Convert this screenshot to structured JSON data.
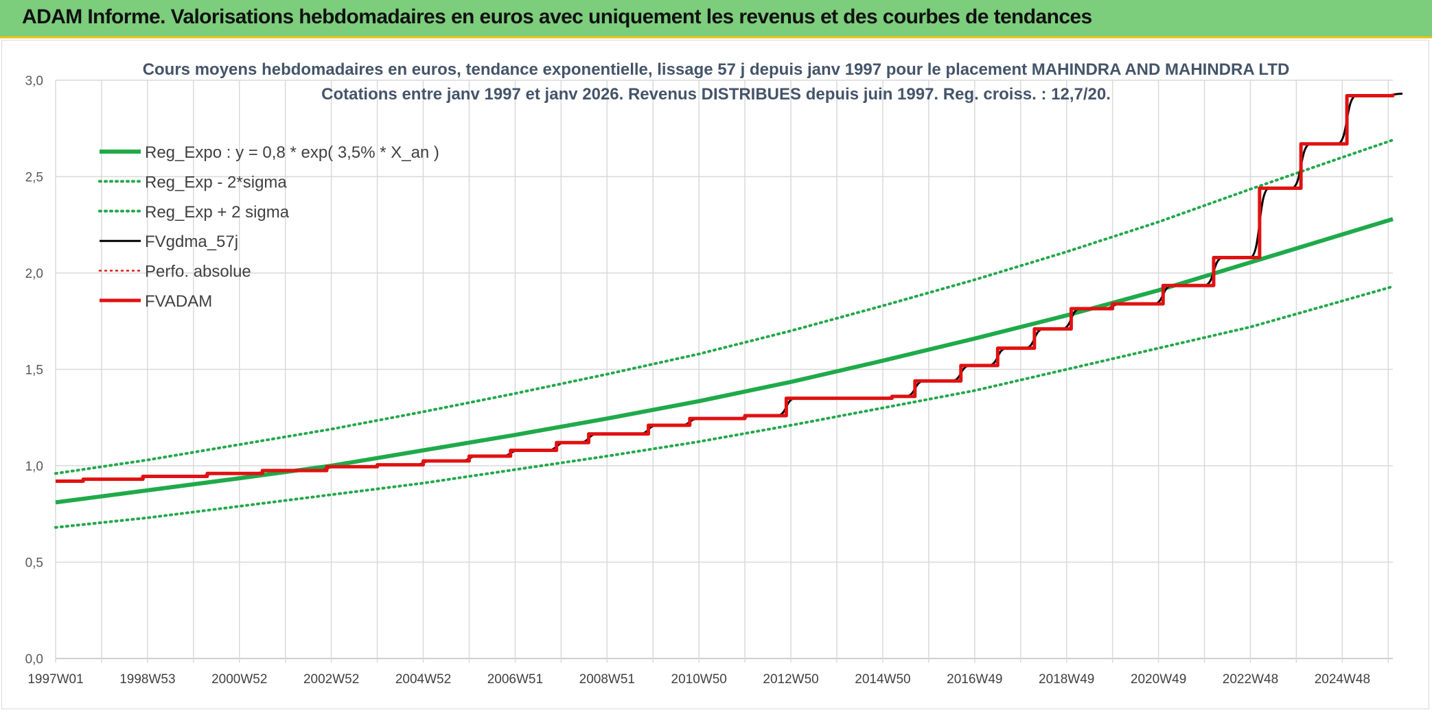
{
  "header": {
    "title": "ADAM Informe. Valorisations hebdomadaires en euros avec uniquement les revenus et des courbes de tendances"
  },
  "colors": {
    "reg_expo": "#1faa4a",
    "bands": "#22a84a",
    "fvgdma": "#000000",
    "perfo": "#d81414",
    "fvadam": "#e11111"
  },
  "chart_data": {
    "type": "line",
    "title": "Cours moyens hebdomadaires en euros, tendance exponentielle, lissage 57 j depuis janv 1997 pour le placement MAHINDRA AND MAHINDRA LTD",
    "subtitle": "Cotations entre janv 1997 et janv 2026. Revenus DISTRIBUES depuis juin 1997. Reg. croiss. : 12,7/20.",
    "xlabel": "",
    "ylabel": "",
    "ylim": [
      0,
      3
    ],
    "xlim": [
      1997.0,
      2026.1
    ],
    "y_ticks": [
      "0,0",
      "0,5",
      "1,0",
      "1,5",
      "2,0",
      "2,5",
      "3,0"
    ],
    "x_tick_labels": [
      {
        "year": 1997.0,
        "label": "1997W01"
      },
      {
        "year": 1999.0,
        "label": "1998W53"
      },
      {
        "year": 2001.0,
        "label": "2000W52"
      },
      {
        "year": 2003.0,
        "label": "2002W52"
      },
      {
        "year": 2005.0,
        "label": "2004W52"
      },
      {
        "year": 2007.0,
        "label": "2006W51"
      },
      {
        "year": 2009.0,
        "label": "2008W51"
      },
      {
        "year": 2011.0,
        "label": "2010W50"
      },
      {
        "year": 2013.0,
        "label": "2012W50"
      },
      {
        "year": 2015.0,
        "label": "2014W50"
      },
      {
        "year": 2017.0,
        "label": "2016W49"
      },
      {
        "year": 2019.0,
        "label": "2018W49"
      },
      {
        "year": 2021.0,
        "label": "2020W49"
      },
      {
        "year": 2023.0,
        "label": "2022W48"
      },
      {
        "year": 2025.0,
        "label": "2024W48"
      }
    ],
    "grid": true,
    "legend_position": "top-left",
    "series": [
      {
        "name": "Reg_Expo : y = 0,8 * exp( 3,5% *  X_an )",
        "style": "solid-thick",
        "color": "#1faa4a",
        "points": [
          [
            1997.0,
            0.81
          ],
          [
            2001.0,
            0.935
          ],
          [
            2003.0,
            1.0
          ],
          [
            2005.0,
            1.08
          ],
          [
            2007.0,
            1.16
          ],
          [
            2009.0,
            1.245
          ],
          [
            2011.0,
            1.335
          ],
          [
            2013.0,
            1.435
          ],
          [
            2015.0,
            1.545
          ],
          [
            2017.0,
            1.66
          ],
          [
            2019.0,
            1.78
          ],
          [
            2021.0,
            1.91
          ],
          [
            2023.0,
            2.055
          ],
          [
            2025.0,
            2.2
          ],
          [
            2026.1,
            2.28
          ]
        ]
      },
      {
        "name": "Reg_Exp - 2*sigma",
        "style": "dotted",
        "color": "#22a84a",
        "points": [
          [
            1997.0,
            0.68
          ],
          [
            1999.0,
            0.73
          ],
          [
            2001.0,
            0.79
          ],
          [
            2003.0,
            0.85
          ],
          [
            2005.0,
            0.91
          ],
          [
            2007.0,
            0.98
          ],
          [
            2009.0,
            1.05
          ],
          [
            2011.0,
            1.125
          ],
          [
            2013.0,
            1.21
          ],
          [
            2015.0,
            1.3
          ],
          [
            2017.0,
            1.39
          ],
          [
            2019.0,
            1.5
          ],
          [
            2021.0,
            1.61
          ],
          [
            2023.0,
            1.72
          ],
          [
            2025.0,
            1.855
          ],
          [
            2026.1,
            1.93
          ]
        ]
      },
      {
        "name": "Reg_Exp + 2 sigma",
        "style": "dotted",
        "color": "#22a84a",
        "points": [
          [
            1997.0,
            0.96
          ],
          [
            1999.0,
            1.03
          ],
          [
            2001.0,
            1.11
          ],
          [
            2003.0,
            1.19
          ],
          [
            2005.0,
            1.28
          ],
          [
            2007.0,
            1.375
          ],
          [
            2009.0,
            1.475
          ],
          [
            2011.0,
            1.58
          ],
          [
            2013.0,
            1.7
          ],
          [
            2015.0,
            1.83
          ],
          [
            2017.0,
            1.965
          ],
          [
            2019.0,
            2.11
          ],
          [
            2021.0,
            2.265
          ],
          [
            2023.0,
            2.435
          ],
          [
            2025.0,
            2.6
          ],
          [
            2026.1,
            2.69
          ]
        ]
      },
      {
        "name": "FVgdma_57j",
        "style": "smooth-steps",
        "color": "#000000",
        "points": [
          [
            1997.0,
            0.92
          ],
          [
            1997.6,
            0.93
          ],
          [
            1998.9,
            0.945
          ],
          [
            2000.3,
            0.96
          ],
          [
            2001.5,
            0.975
          ],
          [
            2002.9,
            0.995
          ],
          [
            2004.0,
            1.005
          ],
          [
            2005.0,
            1.025
          ],
          [
            2006.0,
            1.05
          ],
          [
            2006.9,
            1.08
          ],
          [
            2007.9,
            1.12
          ],
          [
            2008.6,
            1.165
          ],
          [
            2009.9,
            1.21
          ],
          [
            2010.8,
            1.245
          ],
          [
            2012.0,
            1.26
          ],
          [
            2012.9,
            1.35
          ],
          [
            2013.2,
            1.35
          ],
          [
            2015.2,
            1.36
          ],
          [
            2015.7,
            1.44
          ],
          [
            2016.7,
            1.52
          ],
          [
            2017.5,
            1.61
          ],
          [
            2018.3,
            1.71
          ],
          [
            2019.1,
            1.815
          ],
          [
            2020.0,
            1.84
          ],
          [
            2021.1,
            1.935
          ],
          [
            2022.2,
            2.08
          ],
          [
            2023.2,
            2.44
          ],
          [
            2024.1,
            2.67
          ],
          [
            2025.1,
            2.92
          ],
          [
            2026.1,
            2.93
          ]
        ]
      },
      {
        "name": "Perfo. absolue",
        "style": "dotted",
        "color": "#d81414",
        "points": []
      },
      {
        "name": "FVADAM",
        "style": "steps-thick",
        "color": "#e11111",
        "points": [
          [
            1997.0,
            0.92
          ],
          [
            1997.6,
            0.93
          ],
          [
            1998.9,
            0.945
          ],
          [
            2000.3,
            0.96
          ],
          [
            2001.5,
            0.975
          ],
          [
            2002.9,
            0.995
          ],
          [
            2004.0,
            1.005
          ],
          [
            2005.0,
            1.025
          ],
          [
            2006.0,
            1.05
          ],
          [
            2006.9,
            1.08
          ],
          [
            2007.9,
            1.12
          ],
          [
            2008.6,
            1.165
          ],
          [
            2009.9,
            1.21
          ],
          [
            2010.8,
            1.245
          ],
          [
            2012.0,
            1.26
          ],
          [
            2012.9,
            1.35
          ],
          [
            2015.2,
            1.36
          ],
          [
            2015.7,
            1.44
          ],
          [
            2016.7,
            1.52
          ],
          [
            2017.5,
            1.61
          ],
          [
            2018.3,
            1.71
          ],
          [
            2019.1,
            1.815
          ],
          [
            2020.0,
            1.84
          ],
          [
            2021.1,
            1.935
          ],
          [
            2022.2,
            2.08
          ],
          [
            2023.2,
            2.44
          ],
          [
            2024.1,
            2.67
          ],
          [
            2025.1,
            2.92
          ],
          [
            2026.1,
            2.93
          ]
        ]
      }
    ]
  }
}
